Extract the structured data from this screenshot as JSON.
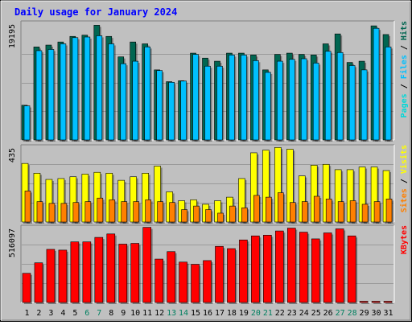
{
  "colors": {
    "hits": "#006651",
    "files": "#00c0ff",
    "pages": "#00d8d8",
    "visits": "#ffff00",
    "sites": "#ff8000",
    "kbytes": "#ff0000",
    "plot_bg": "#c0c0c0",
    "frame_bg": "#c0c0c0",
    "title": "#0000ff"
  },
  "chart_data": [
    {
      "type": "bar",
      "title": "Daily usage for January 2024",
      "panel": "hits-files-pages",
      "ymax_label": "19195",
      "ylim": [
        0,
        19195
      ],
      "categories": [
        "1",
        "2",
        "3",
        "4",
        "5",
        "6",
        "7",
        "8",
        "9",
        "10",
        "11",
        "12",
        "13",
        "14",
        "15",
        "16",
        "17",
        "18",
        "19",
        "20",
        "21",
        "22",
        "23",
        "24",
        "25",
        "26",
        "27",
        "28",
        "29",
        "30",
        "31"
      ],
      "weekend_days": [
        "6",
        "7",
        "13",
        "14",
        "20",
        "21",
        "27",
        "28"
      ],
      "legend": [
        "Pages",
        "Files",
        "Hits"
      ],
      "series": [
        {
          "name": "Hits",
          "values": [
            5600,
            15000,
            15300,
            15800,
            16700,
            16900,
            18500,
            16700,
            13400,
            15800,
            15500,
            11300,
            9400,
            9550,
            14000,
            13200,
            12700,
            14000,
            14000,
            13700,
            11300,
            13800,
            14000,
            13800,
            13700,
            15500,
            17100,
            12500,
            12700,
            18400,
            17000
          ]
        },
        {
          "name": "Files",
          "values": [
            5500,
            14400,
            14600,
            15500,
            16500,
            16600,
            16800,
            15500,
            12300,
            12700,
            15000,
            11200,
            9300,
            9500,
            13800,
            11900,
            11900,
            13700,
            13700,
            12800,
            10900,
            12700,
            13000,
            13100,
            12400,
            14300,
            14100,
            12000,
            11300,
            18000,
            15000
          ]
        },
        {
          "name": "Pages",
          "values": [
            0,
            0,
            0,
            0,
            0,
            0,
            0,
            0,
            0,
            0,
            0,
            0,
            0,
            0,
            0,
            0,
            0,
            0,
            0,
            0,
            0,
            0,
            0,
            0,
            0,
            0,
            0,
            0,
            0,
            0,
            0
          ]
        }
      ]
    },
    {
      "type": "bar",
      "panel": "visits-sites",
      "ymax_label": "435",
      "ylim": [
        0,
        435
      ],
      "categories": [
        "1",
        "2",
        "3",
        "4",
        "5",
        "6",
        "7",
        "8",
        "9",
        "10",
        "11",
        "12",
        "13",
        "14",
        "15",
        "16",
        "17",
        "18",
        "19",
        "20",
        "21",
        "22",
        "23",
        "24",
        "25",
        "26",
        "27",
        "28",
        "29",
        "30",
        "31"
      ],
      "legend": [
        "Sites",
        "Visits"
      ],
      "series": [
        {
          "name": "Visits",
          "values": [
            330,
            275,
            240,
            245,
            255,
            270,
            280,
            275,
            235,
            255,
            275,
            315,
            170,
            120,
            125,
            100,
            120,
            140,
            245,
            390,
            405,
            420,
            410,
            260,
            320,
            325,
            295,
            295,
            310,
            310,
            290
          ]
        },
        {
          "name": "Sites",
          "values": [
            175,
            115,
            105,
            105,
            110,
            115,
            135,
            125,
            115,
            115,
            125,
            115,
            110,
            70,
            90,
            70,
            50,
            90,
            80,
            150,
            140,
            165,
            110,
            115,
            145,
            130,
            115,
            120,
            100,
            115,
            130
          ]
        }
      ]
    },
    {
      "type": "bar",
      "panel": "kbytes",
      "ymax_label": "516097",
      "ylim": [
        0,
        516097
      ],
      "categories": [
        "1",
        "2",
        "3",
        "4",
        "5",
        "6",
        "7",
        "8",
        "9",
        "10",
        "11",
        "12",
        "13",
        "14",
        "15",
        "16",
        "17",
        "18",
        "19",
        "20",
        "21",
        "22",
        "23",
        "24",
        "25",
        "26",
        "27",
        "28",
        "29",
        "30",
        "31"
      ],
      "legend": [
        "KBytes"
      ],
      "series": [
        {
          "name": "KBytes",
          "values": [
            195000,
            265000,
            355000,
            350000,
            405000,
            405000,
            435000,
            458000,
            390000,
            395000,
            502000,
            290000,
            340000,
            270000,
            255000,
            280000,
            375000,
            360000,
            418000,
            445000,
            450000,
            478000,
            497000,
            470000,
            425000,
            465000,
            492000,
            445000,
            8000,
            8000,
            8000
          ]
        }
      ]
    }
  ]
}
